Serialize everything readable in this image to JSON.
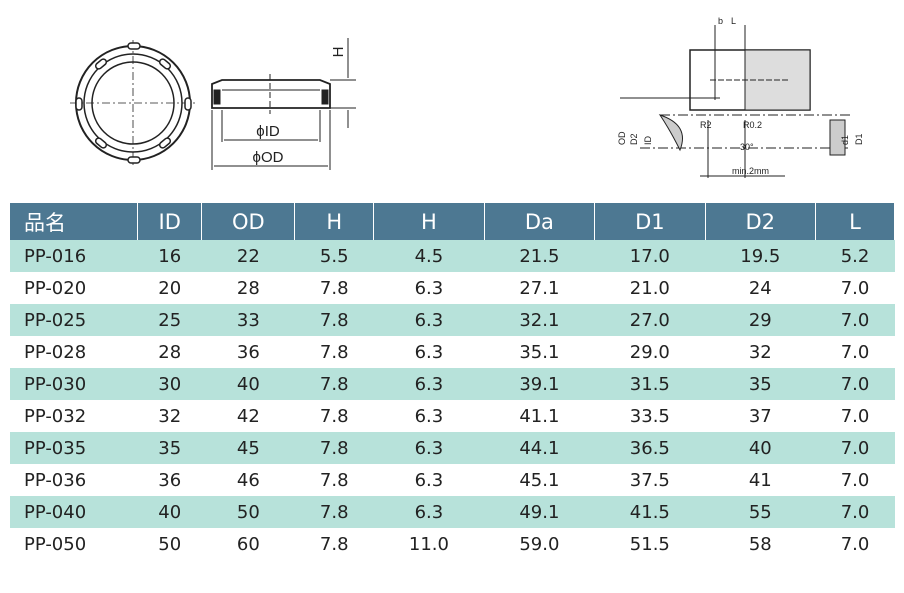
{
  "drawing_left": {
    "height_label": "H",
    "id_label": "ϕID",
    "od_label": "ϕOD"
  },
  "drawing_right": {
    "b_label": "b",
    "l_label": "L",
    "r2_label": "R2",
    "r02_label": "R0.2",
    "angle_label": "30°",
    "min_label": "min.2mm",
    "od_label": "OD",
    "d2_label": "D2",
    "id_label": "ID",
    "d1_label": "d1",
    "big_d1_label": "D1"
  },
  "table": {
    "header": [
      "品名",
      "ID",
      "OD",
      "H",
      "H",
      "Da",
      "D1",
      "D2",
      "L"
    ],
    "rows": [
      [
        "PP-016",
        "16",
        "22",
        "5.5",
        "4.5",
        "21.5",
        "17.0",
        "19.5",
        "5.2"
      ],
      [
        "PP-020",
        "20",
        "28",
        "7.8",
        "6.3",
        "27.1",
        "21.0",
        "24",
        "7.0"
      ],
      [
        "PP-025",
        "25",
        "33",
        "7.8",
        "6.3",
        "32.1",
        "27.0",
        "29",
        "7.0"
      ],
      [
        "PP-028",
        "28",
        "36",
        "7.8",
        "6.3",
        "35.1",
        "29.0",
        "32",
        "7.0"
      ],
      [
        "PP-030",
        "30",
        "40",
        "7.8",
        "6.3",
        "39.1",
        "31.5",
        "35",
        "7.0"
      ],
      [
        "PP-032",
        "32",
        "42",
        "7.8",
        "6.3",
        "41.1",
        "33.5",
        "37",
        "7.0"
      ],
      [
        "PP-035",
        "35",
        "45",
        "7.8",
        "6.3",
        "44.1",
        "36.5",
        "40",
        "7.0"
      ],
      [
        "PP-036",
        "36",
        "46",
        "7.8",
        "6.3",
        "45.1",
        "37.5",
        "41",
        "7.0"
      ],
      [
        "PP-040",
        "40",
        "50",
        "7.8",
        "6.3",
        "49.1",
        "41.5",
        "55",
        "7.0"
      ],
      [
        "PP-050",
        "50",
        "60",
        "7.8",
        "11.0",
        "59.0",
        "51.5",
        "58",
        "7.0"
      ]
    ]
  }
}
